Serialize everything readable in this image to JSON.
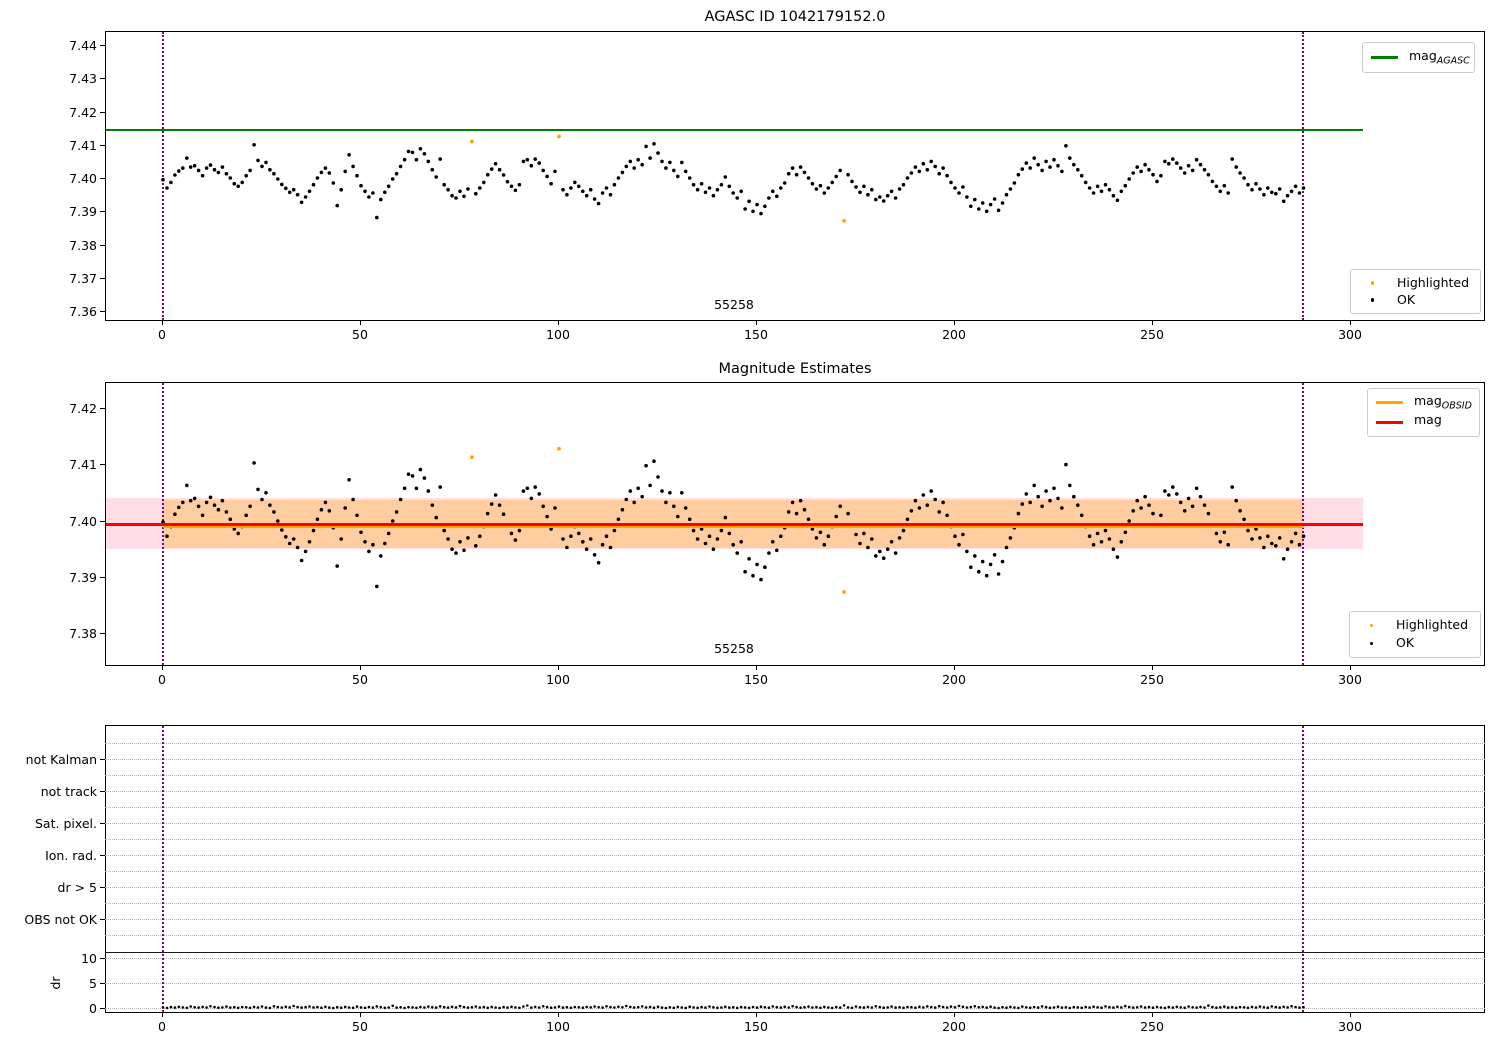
{
  "titles": {
    "plot1": "AGASC ID 1042179152.0",
    "plot2": "Magnitude Estimates"
  },
  "obsid": {
    "label": "55258"
  },
  "axes": {
    "xticks": [
      "0",
      "50",
      "100",
      "150",
      "200",
      "250",
      "300"
    ]
  },
  "plot1": {
    "yticks": [
      "7.44",
      "7.43",
      "7.42",
      "7.41",
      "7.40",
      "7.39",
      "7.38",
      "7.37",
      "7.36"
    ],
    "legend_line": {
      "main": "mag",
      "sub": "AGASC"
    },
    "legend_points": {
      "highlighted": "Highlighted",
      "ok": "OK"
    }
  },
  "plot2": {
    "yticks": [
      "7.42",
      "7.41",
      "7.40",
      "7.39",
      "7.38"
    ],
    "legend_lines": [
      {
        "main": "mag",
        "sub": "OBSID"
      },
      {
        "main": "mag",
        "sub": ""
      }
    ],
    "legend_points": {
      "highlighted": "Highlighted",
      "ok": "OK"
    }
  },
  "plot3": {
    "flags": [
      "not Kalman",
      "not track",
      "Sat. pixel.",
      "Ion. rad.",
      "dr > 5",
      "OBS not OK"
    ],
    "dr_ticks": [
      "10",
      "5",
      "0"
    ],
    "ylabel": "dr"
  },
  "colors": {
    "agasc_line": "#008000",
    "mag_line": "#ff0000",
    "obsid_line": "#ffa500",
    "highlight": "#ffa500",
    "ok": "#000000",
    "vline": "#800080",
    "grid": "#b2b2b2",
    "band_pink": "rgba(255,192,203,0.5)",
    "band_orange": "rgba(255,165,0,0.3)"
  },
  "chart_data": [
    {
      "type": "scatter",
      "title": "AGASC ID 1042179152.0",
      "xlim": [
        -14.4,
        334
      ],
      "ylim": [
        7.3572,
        7.4444
      ],
      "xticks": [
        0,
        50,
        100,
        150,
        200,
        250,
        300
      ],
      "yticks": [
        7.36,
        7.37,
        7.38,
        7.39,
        7.4,
        7.41,
        7.42,
        7.43,
        7.44
      ],
      "grid": false,
      "annotation": {
        "text": "55258",
        "x": 144,
        "y": 7.362
      },
      "hlines": [
        {
          "name": "mag_AGASC",
          "y": 7.415,
          "color": "#008000",
          "x_from": -14.4,
          "x_to": 303
        }
      ],
      "vlines": [
        {
          "x": 0
        },
        {
          "x": 288
        }
      ],
      "legend": [
        "mag_AGASC",
        "Highlighted",
        "OK"
      ],
      "series": [
        {
          "name": "OK",
          "color": "#000000",
          "x_start": 0,
          "x_step": 1,
          "y_base": 7.4,
          "y_unit": 0.0001,
          "y_offsets": [
            0,
            -25,
            -8,
            14,
            26,
            35,
            65,
            38,
            42,
            28,
            12,
            35,
            44,
            30,
            22,
            38,
            18,
            5,
            -12,
            -20,
            -8,
            12,
            28,
            105,
            58,
            40,
            52,
            30,
            18,
            2,
            -14,
            -26,
            -38,
            -30,
            -45,
            -68,
            -52,
            -35,
            -15,
            5,
            22,
            35,
            20,
            -10,
            -78,
            -30,
            25,
            75,
            40,
            12,
            -18,
            -35,
            -52,
            -40,
            -114,
            -60,
            -38,
            -20,
            2,
            18,
            40,
            60,
            85,
            82,
            60,
            93,
            78,
            55,
            30,
            8,
            62,
            -15,
            -30,
            -48,
            -55,
            -35,
            -50,
            -28,
            null,
            -42,
            -25,
            -8,
            15,
            32,
            48,
            30,
            14,
            -6,
            -20,
            -32,
            -15,
            55,
            60,
            42,
            62,
            50,
            28,
            10,
            -12,
            25,
            null,
            -30,
            -45,
            -25,
            -8,
            -20,
            -35,
            -48,
            -30,
            -58,
            -72,
            -40,
            -25,
            -45,
            -15,
            5,
            22,
            40,
            55,
            35,
            60,
            45,
            100,
            65,
            108,
            80,
            55,
            35,
            52,
            28,
            10,
            52,
            25,
            5,
            -15,
            -30,
            -12,
            -38,
            -25,
            -48,
            -30,
            -15,
            8,
            -20,
            -40,
            -55,
            -35,
            -88,
            -65,
            -95,
            -75,
            -102,
            -80,
            -55,
            -35,
            -50,
            -25,
            -10,
            18,
            35,
            15,
            38,
            22,
            5,
            -12,
            -28,
            -18,
            -40,
            -25,
            -8,
            10,
            28,
            null,
            15,
            -5,
            -22,
            -38,
            -20,
            -45,
            -30,
            -60,
            -52,
            -64,
            -48,
            -35,
            -55,
            -28,
            -15,
            5,
            20,
            38,
            25,
            48,
            30,
            55,
            40,
            18,
            35,
            12,
            -8,
            -25,
            -40,
            -22,
            -52,
            -80,
            -60,
            -88,
            -70,
            -95,
            -75,
            -58,
            -92,
            -70,
            -45,
            -28,
            -10,
            15,
            32,
            50,
            35,
            65,
            45,
            28,
            55,
            38,
            60,
            42,
            25,
            102,
            65,
            45,
            30,
            12,
            -8,
            -25,
            -40,
            -20,
            -35,
            -15,
            -30,
            -48,
            -62,
            -35,
            -18,
            2,
            20,
            38,
            25,
            45,
            30,
            15,
            -5,
            12,
            55,
            48,
            62,
            50,
            35,
            20,
            42,
            28,
            60,
            45,
            30,
            15,
            -5,
            -20,
            -35,
            -18,
            -40,
            62,
            38,
            20,
            5,
            -15,
            -30,
            -12,
            -28,
            -45,
            -25,
            -38,
            -42,
            -28,
            -65,
            -48,
            -35,
            -20,
            -40,
            -25
          ]
        },
        {
          "name": "Highlighted",
          "color": "#ffa500",
          "y_base": 7.4,
          "y_unit": 0.0001,
          "points_x": [
            78,
            100,
            172
          ],
          "points_y_offsets": [
            115,
            130,
            -124
          ]
        }
      ]
    },
    {
      "type": "scatter",
      "title": "Magnitude Estimates",
      "xlim": [
        -14.4,
        334
      ],
      "ylim": [
        7.3743,
        7.4247
      ],
      "xticks": [
        0,
        50,
        100,
        150,
        200,
        250,
        300
      ],
      "yticks": [
        7.38,
        7.39,
        7.4,
        7.41,
        7.42
      ],
      "grid": false,
      "annotation": {
        "text": "55258",
        "x": 144,
        "y": 7.377
      },
      "hlines": [
        {
          "name": "mag_OBSID",
          "y": 7.3995,
          "color": "#ffa500",
          "x_from": 0,
          "x_to": 288
        },
        {
          "name": "mag",
          "y": 7.3996,
          "color": "#ff0000",
          "x_from": -14.4,
          "x_to": 303
        }
      ],
      "bands": [
        {
          "name": "mag_err",
          "y_from": 7.3953,
          "y_to": 7.4043,
          "color": "rgba(255,192,203,0.5)",
          "x_from": -14.4,
          "x_to": 303
        },
        {
          "name": "obsid_err",
          "y_from": 7.3955,
          "y_to": 7.4041,
          "color": "rgba(255,165,0,0.3)",
          "x_from": 0,
          "x_to": 288
        }
      ],
      "vlines": [
        {
          "x": 0
        },
        {
          "x": 288
        }
      ],
      "legend": [
        "mag_OBSID",
        "mag",
        "Highlighted",
        "OK"
      ],
      "series": "same_as_plot1"
    },
    {
      "type": "scatter",
      "panel": "flags_and_dr",
      "flag_categories": [
        "not Kalman",
        "not track",
        "Sat. pixel.",
        "Ion. rad.",
        "dr > 5",
        "OBS not OK"
      ],
      "flag_events": [],
      "dr_ylabel": "dr",
      "dr_yticks": [
        0,
        5,
        10
      ],
      "separator_dr": 11.2,
      "xticks": [
        0,
        50,
        100,
        150,
        200,
        250,
        300
      ],
      "vlines": [
        {
          "x": 0
        },
        {
          "x": 288
        }
      ],
      "dr_series": {
        "x_start": 0,
        "x_step": 1,
        "value_unit": 0.01,
        "values": [
          30,
          22,
          38,
          28,
          45,
          33,
          25,
          50,
          35,
          27,
          42,
          30,
          55,
          38,
          26,
          33,
          47,
          29,
          36,
          24,
          40,
          35,
          25,
          42,
          30,
          50,
          28,
          22,
          55,
          38,
          30,
          45,
          33,
          60,
          40,
          28,
          36,
          50,
          32,
          38,
          26,
          44,
          28,
          20,
          36,
          26,
          42,
          30,
          24,
          48,
          33,
          25,
          40,
          28,
          52,
          36,
          24,
          30,
          65,
          27,
          34,
          22,
          38,
          32,
          24,
          40,
          30,
          48,
          35,
          27,
          52,
          36,
          28,
          44,
          32,
          58,
          40,
          28,
          35,
          50,
          30,
          38,
          25,
          42,
          30,
          22,
          38,
          28,
          45,
          33,
          25,
          50,
          70,
          27,
          42,
          30,
          55,
          38,
          26,
          33,
          47,
          29,
          36,
          24,
          40,
          34,
          26,
          42,
          32,
          50,
          36,
          28,
          54,
          38,
          30,
          46,
          34,
          60,
          42,
          30,
          36,
          52,
          32,
          40,
          26,
          44,
          28,
          20,
          35,
          25,
          42,
          30,
          22,
          46,
          32,
          24,
          38,
          28,
          50,
          35,
          24,
          30,
          45,
          28,
          34,
          22,
          38,
          32,
          24,
          40,
          28,
          46,
          34,
          26,
          52,
          36,
          28,
          44,
          30,
          56,
          38,
          26,
          34,
          48,
          30,
          36,
          24,
          42,
          30,
          22,
          38,
          28,
          72,
          33,
          25,
          50,
          35,
          27,
          42,
          30,
          55,
          38,
          26,
          33,
          47,
          29,
          36,
          24,
          40,
          36,
          26,
          44,
          32,
          52,
          38,
          28,
          56,
          40,
          30,
          48,
          34,
          62,
          44,
          30,
          38,
          54,
          34,
          42,
          28,
          46,
          28,
          20,
          36,
          26,
          42,
          30,
          22,
          48,
          34,
          26,
          40,
          28,
          52,
          36,
          24,
          32,
          46,
          28,
          34,
          22,
          38,
          32,
          24,
          40,
          30,
          46,
          34,
          26,
          52,
          36,
          28,
          44,
          32,
          58,
          40,
          28,
          34,
          50,
          30,
          38,
          26,
          42,
          30,
          22,
          38,
          28,
          45,
          33,
          25,
          50,
          35,
          27,
          42,
          30,
          68,
          38,
          26,
          33,
          47,
          29,
          36,
          24,
          40,
          34,
          24,
          42,
          30,
          48,
          34,
          26,
          52,
          38,
          28,
          44,
          32,
          56,
          40,
          28,
          36
        ]
      }
    }
  ]
}
